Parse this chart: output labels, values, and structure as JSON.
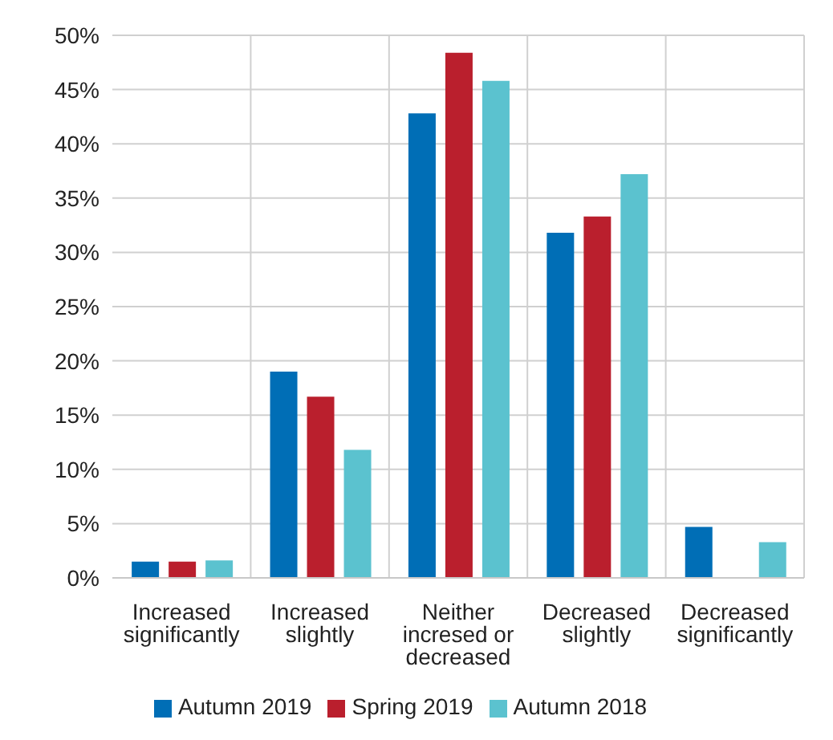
{
  "chart_data": {
    "type": "bar",
    "categories": [
      "Increased significantly",
      "Increased slightly",
      "Neither incresed or decreased",
      "Decreased slightly",
      "Decreased significantly"
    ],
    "series": [
      {
        "name": "Autumn 2019",
        "color": "#006eb6",
        "values": [
          1.5,
          19.0,
          42.8,
          31.8,
          4.7
        ]
      },
      {
        "name": "Spring 2019",
        "color": "#ba1f2d",
        "values": [
          1.5,
          16.7,
          48.4,
          33.3,
          null
        ]
      },
      {
        "name": "Autumn 2018",
        "color": "#5bc2cf",
        "values": [
          1.6,
          11.8,
          45.8,
          37.2,
          3.3
        ]
      }
    ],
    "ylim": [
      0,
      50
    ],
    "yticks": [
      {
        "value": 0,
        "label": "0%"
      },
      {
        "value": 5,
        "label": "5%"
      },
      {
        "value": 10,
        "label": "10%"
      },
      {
        "value": 15,
        "label": "15%"
      },
      {
        "value": 20,
        "label": "20%"
      },
      {
        "value": 25,
        "label": "25%"
      },
      {
        "value": 30,
        "label": "30%"
      },
      {
        "value": 35,
        "label": "35%"
      },
      {
        "value": 40,
        "label": "40%"
      },
      {
        "value": 45,
        "label": "45%"
      },
      {
        "value": 50,
        "label": "50%"
      }
    ],
    "grid": true,
    "legend": "bottom"
  }
}
